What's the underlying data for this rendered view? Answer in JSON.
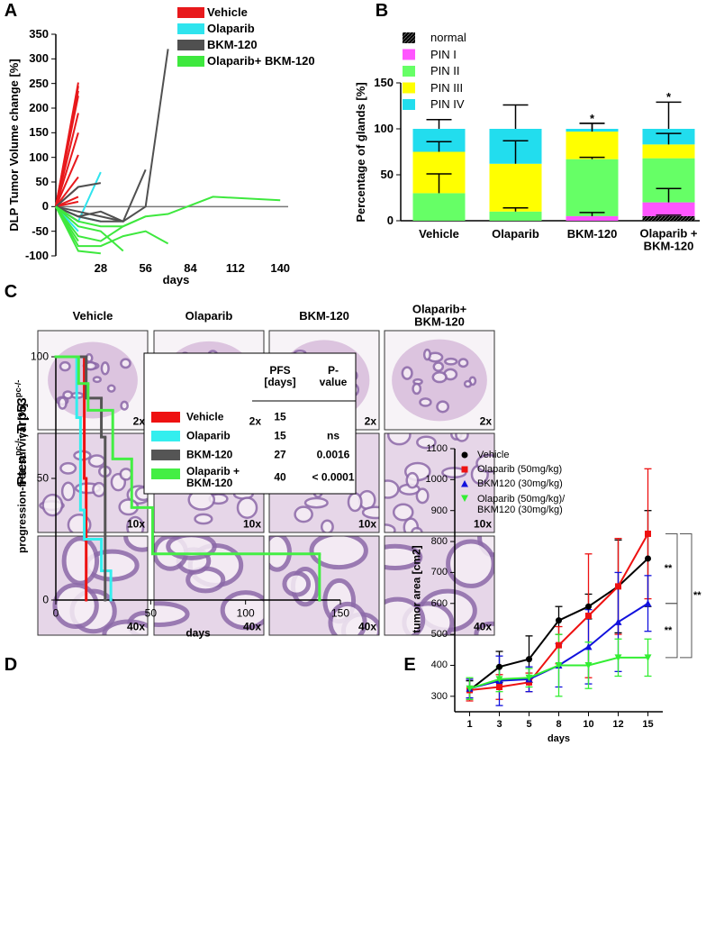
{
  "figure": {
    "panel_labels": [
      "A",
      "B",
      "C",
      "D",
      "E"
    ],
    "panel_c": {
      "columns": [
        "Vehicle",
        "Olaparib",
        "BKM-120",
        "Olaparib+\nBKM-120"
      ],
      "magnifications": [
        "2x",
        "10x",
        "40x"
      ],
      "row_label": [
        "Pten",
        "pc-/-",
        ";Trp53",
        "pc-/-"
      ]
    }
  },
  "chart_data": [
    {
      "type": "spider",
      "ylabel": "DLP Tumor Volume change [%]",
      "xlabel": "days",
      "xlim": [
        0,
        150
      ],
      "xticks": [
        28,
        56,
        84,
        112,
        140
      ],
      "ylim": [
        -100,
        350
      ],
      "yticks": [
        -100,
        -50,
        0,
        50,
        100,
        150,
        200,
        250,
        300,
        350
      ],
      "series": [
        {
          "name": "Vehicle",
          "color": "#e8191c",
          "lines": [
            {
              "x": [
                0,
                14
              ],
              "values": [
                0,
                252
              ]
            },
            {
              "x": [
                0,
                14
              ],
              "values": [
                0,
                245
              ]
            },
            {
              "x": [
                0,
                14
              ],
              "values": [
                0,
                235
              ]
            },
            {
              "x": [
                0,
                14
              ],
              "values": [
                0,
                225
              ]
            },
            {
              "x": [
                0,
                14
              ],
              "values": [
                0,
                190
              ]
            },
            {
              "x": [
                0,
                14
              ],
              "values": [
                0,
                150
              ]
            },
            {
              "x": [
                0,
                14
              ],
              "values": [
                0,
                105
              ]
            },
            {
              "x": [
                0,
                14
              ],
              "values": [
                0,
                60
              ]
            },
            {
              "x": [
                0,
                14
              ],
              "values": [
                0,
                40
              ]
            },
            {
              "x": [
                0,
                14
              ],
              "values": [
                0,
                20
              ]
            },
            {
              "x": [
                0,
                14
              ],
              "values": [
                0,
                10
              ]
            }
          ]
        },
        {
          "name": "Olaparib",
          "color": "#2fe4ee",
          "lines": [
            {
              "x": [
                0,
                14,
                28
              ],
              "values": [
                0,
                -30,
                70
              ]
            },
            {
              "x": [
                0,
                14,
                28
              ],
              "values": [
                0,
                -20,
                -30
              ]
            },
            {
              "x": [
                0,
                14
              ],
              "values": [
                0,
                -50
              ]
            }
          ]
        },
        {
          "name": "BKM-120",
          "color": "#505050",
          "lines": [
            {
              "x": [
                0,
                14,
                28
              ],
              "values": [
                0,
                40,
                48
              ]
            },
            {
              "x": [
                0,
                14,
                28,
                42
              ],
              "values": [
                0,
                -20,
                -10,
                -30
              ]
            },
            {
              "x": [
                0,
                14,
                28,
                42,
                56,
                70
              ],
              "values": [
                0,
                -20,
                -30,
                -30,
                0,
                320
              ]
            },
            {
              "x": [
                0,
                14,
                28,
                42,
                56
              ],
              "values": [
                0,
                -10,
                -20,
                -30,
                75
              ]
            },
            {
              "x": [
                0,
                14
              ],
              "values": [
                0,
                -30
              ]
            }
          ]
        },
        {
          "name": "Olaparib+ BKM-120",
          "color": "#3ee83e",
          "lines": [
            {
              "x": [
                0,
                14,
                28,
                42,
                56,
                70,
                98,
                140
              ],
              "values": [
                0,
                -30,
                -40,
                -40,
                -20,
                -15,
                20,
                13
              ]
            },
            {
              "x": [
                0,
                14,
                28,
                42,
                56
              ],
              "values": [
                0,
                -60,
                -70,
                -40,
                -20
              ]
            },
            {
              "x": [
                0,
                14,
                28,
                42,
                56,
                70
              ],
              "values": [
                0,
                -80,
                -80,
                -60,
                -50,
                -75
              ]
            },
            {
              "x": [
                0,
                14,
                28
              ],
              "values": [
                0,
                -90,
                -95
              ]
            },
            {
              "x": [
                0,
                14,
                28,
                42
              ],
              "values": [
                0,
                -40,
                -50,
                -90
              ]
            },
            {
              "x": [
                0,
                14
              ],
              "values": [
                0,
                -70
              ]
            }
          ]
        }
      ]
    },
    {
      "type": "stacked_bar",
      "ylabel": "Percentage of glands [%]",
      "categories": [
        "Vehicle",
        "Olaparib",
        "BKM-120",
        "Olaparib +\nBKM-120"
      ],
      "ylim": [
        0,
        150
      ],
      "yticks": [
        0,
        50,
        100,
        150
      ],
      "series": [
        {
          "name": "normal",
          "color": "#000000",
          "pattern": "hatch",
          "values": [
            0,
            0,
            0,
            5
          ],
          "errors": [
            null,
            null,
            null,
            1
          ]
        },
        {
          "name": "PIN I",
          "color": "#ff55ff",
          "values": [
            0,
            0,
            5,
            15
          ],
          "errors": [
            null,
            null,
            4,
            15
          ]
        },
        {
          "name": "PIN II",
          "color": "#66ff66",
          "values": [
            30,
            10,
            62,
            48
          ],
          "errors": [
            21,
            4,
            2,
            null
          ]
        },
        {
          "name": "PIN III",
          "color": "#ffff00",
          "values": [
            45,
            52,
            30,
            15
          ],
          "errors": [
            11,
            25,
            9,
            12
          ]
        },
        {
          "name": "PIN IV",
          "color": "#22ddee",
          "values": [
            25,
            38,
            3,
            17
          ],
          "errors": [
            10,
            26,
            6,
            29
          ]
        }
      ],
      "annotations": [
        {
          "text": "*",
          "category": 2
        },
        {
          "text": "*",
          "category": 3
        }
      ]
    },
    {
      "type": "survival",
      "ylabel": "progression-free survival [%]",
      "xlabel": "days",
      "xlim": [
        0,
        150
      ],
      "xticks": [
        0,
        50,
        100,
        150
      ],
      "ylim": [
        0,
        100
      ],
      "yticks": [
        0,
        50,
        100
      ],
      "table_headers": [
        "PFS\n[days]",
        "P-\nvalue"
      ],
      "series": [
        {
          "name": "Vehicle",
          "color": "#ee1111",
          "x": [
            0,
            15,
            16
          ],
          "values": [
            100,
            50,
            0
          ],
          "pfs": 15
        },
        {
          "name": "Olaparib",
          "color": "#33eeee",
          "x": [
            0,
            11,
            13,
            15,
            24,
            29
          ],
          "values": [
            100,
            75,
            37,
            25,
            12,
            0
          ],
          "pfs": 15,
          "p_value": "ns"
        },
        {
          "name": "BKM-120",
          "color": "#555555",
          "x": [
            0,
            16,
            24,
            26
          ],
          "values": [
            100,
            83,
            67,
            0
          ],
          "pfs": 27,
          "p_value": "0.0016"
        },
        {
          "name": "Olaparib +\nBKM-120",
          "color": "#44ee44",
          "x": [
            0,
            12,
            17,
            30,
            40,
            51,
            139
          ],
          "values": [
            100,
            89,
            78,
            58,
            38,
            19,
            0
          ],
          "pfs": 40,
          "p_value": "< 0.0001"
        }
      ]
    },
    {
      "type": "line",
      "ylabel": "tumor area [cm2]",
      "xlabel": "days",
      "categories": [
        "1",
        "3",
        "5",
        "8",
        "10",
        "12",
        "15"
      ],
      "ylim": [
        250,
        1100
      ],
      "yticks": [
        300,
        400,
        500,
        600,
        700,
        800,
        900,
        1000,
        1100
      ],
      "series": [
        {
          "name": "Vehicle",
          "color": "#000000",
          "marker": "circle",
          "values": [
            320,
            395,
            420,
            545,
            590,
            655,
            745
          ],
          "errors": [
            30,
            50,
            75,
            45,
            40,
            150,
            155
          ]
        },
        {
          "name": "Olaparib (50mg/kg)",
          "color": "#ee1111",
          "marker": "square",
          "values": [
            320,
            330,
            345,
            465,
            560,
            655,
            825
          ],
          "errors": [
            35,
            40,
            30,
            60,
            200,
            155,
            210
          ]
        },
        {
          "name": "BKM120 (30mg/kg)",
          "color": "#1111dd",
          "marker": "triangle-up",
          "values": [
            325,
            350,
            355,
            400,
            460,
            540,
            600
          ],
          "errors": [
            30,
            80,
            40,
            70,
            120,
            160,
            90
          ]
        },
        {
          "name": "Olaparib (50mg/kg)/\nBKM120 (30mg/kg)",
          "color": "#33ee33",
          "marker": "triangle-down",
          "values": [
            325,
            355,
            360,
            400,
            400,
            425,
            425
          ],
          "errors": [
            35,
            40,
            30,
            100,
            75,
            60,
            60
          ]
        }
      ],
      "annotations": [
        {
          "text": "**",
          "series": [
            1,
            2
          ]
        },
        {
          "text": "**",
          "series": [
            2,
            3
          ]
        },
        {
          "text": "**",
          "series": [
            1,
            3
          ]
        }
      ]
    }
  ]
}
